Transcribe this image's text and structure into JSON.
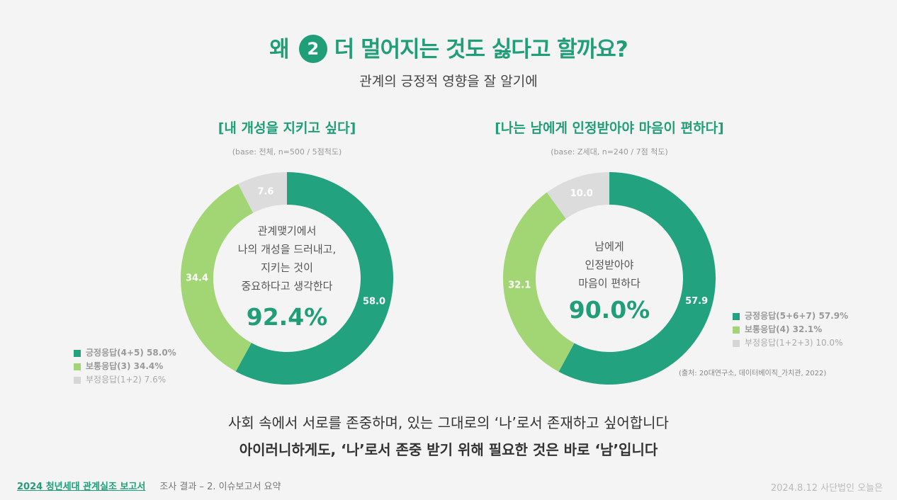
{
  "header": {
    "title_pre": "왜",
    "title_num": "2",
    "title_post": "더 멀어지는 것도 싫다고 할까요?",
    "subtitle": "관계의 긍정적 영향을 잘 알기에"
  },
  "chart_data": [
    {
      "type": "pie",
      "title": "[내 개성을 지키고 싶다]",
      "base": "(base: 전체, n=500 / 5점척도)",
      "center_text": [
        "관계맺기에서",
        "나의 개성을 드러내고,",
        "지키는 것이",
        "중요하다고 생각한다"
      ],
      "center_value": "92.4%",
      "slices": [
        {
          "name": "긍정응답(4+5) 58.0%",
          "value": 58.0,
          "label": "58.0",
          "color": "#22a27e"
        },
        {
          "name": "보통응답(3) 34.4%",
          "value": 34.4,
          "label": "34.4",
          "color": "#a2d574"
        },
        {
          "name": "부정응답(1+2) 7.6%",
          "value": 7.6,
          "label": "7.6",
          "color": "#dcdcdc"
        }
      ]
    },
    {
      "type": "pie",
      "title": "[나는 남에게 인정받아야 마음이 편하다]",
      "base": "(base: Z세대, n=240 / 7점 척도)",
      "center_text": [
        "남에게",
        "인정받아야",
        "마음이 편하다"
      ],
      "center_value": "90.0%",
      "slices": [
        {
          "name": "긍정응답(5+6+7) 57.9%",
          "value": 57.9,
          "label": "57.9",
          "color": "#22a27e"
        },
        {
          "name": "보통응답(4) 32.1%",
          "value": 32.1,
          "label": "32.1",
          "color": "#a2d574"
        },
        {
          "name": "부정응답(1+2+3) 10.0%",
          "value": 10.0,
          "label": "10.0",
          "color": "#dcdcdc"
        }
      ],
      "source": "(출처: 20대연구소, 데이터베이직_가치관, 2022)"
    }
  ],
  "conclusion": {
    "line1": "사회 속에서 서로를 존중하며, 있는 그대로의 ‘나’로서 존재하고 싶어합니다",
    "line2": "아이러니하게도, ‘나’로서 존중 받기 위해 필요한 것은 바로 ‘남’입니다"
  },
  "footer": {
    "report": "2024 청년세대 관계실조 보고서",
    "section": "조사 결과 – 2. 이슈보고서 요약",
    "right": "2024.8.12 사단법인 오늘은"
  }
}
